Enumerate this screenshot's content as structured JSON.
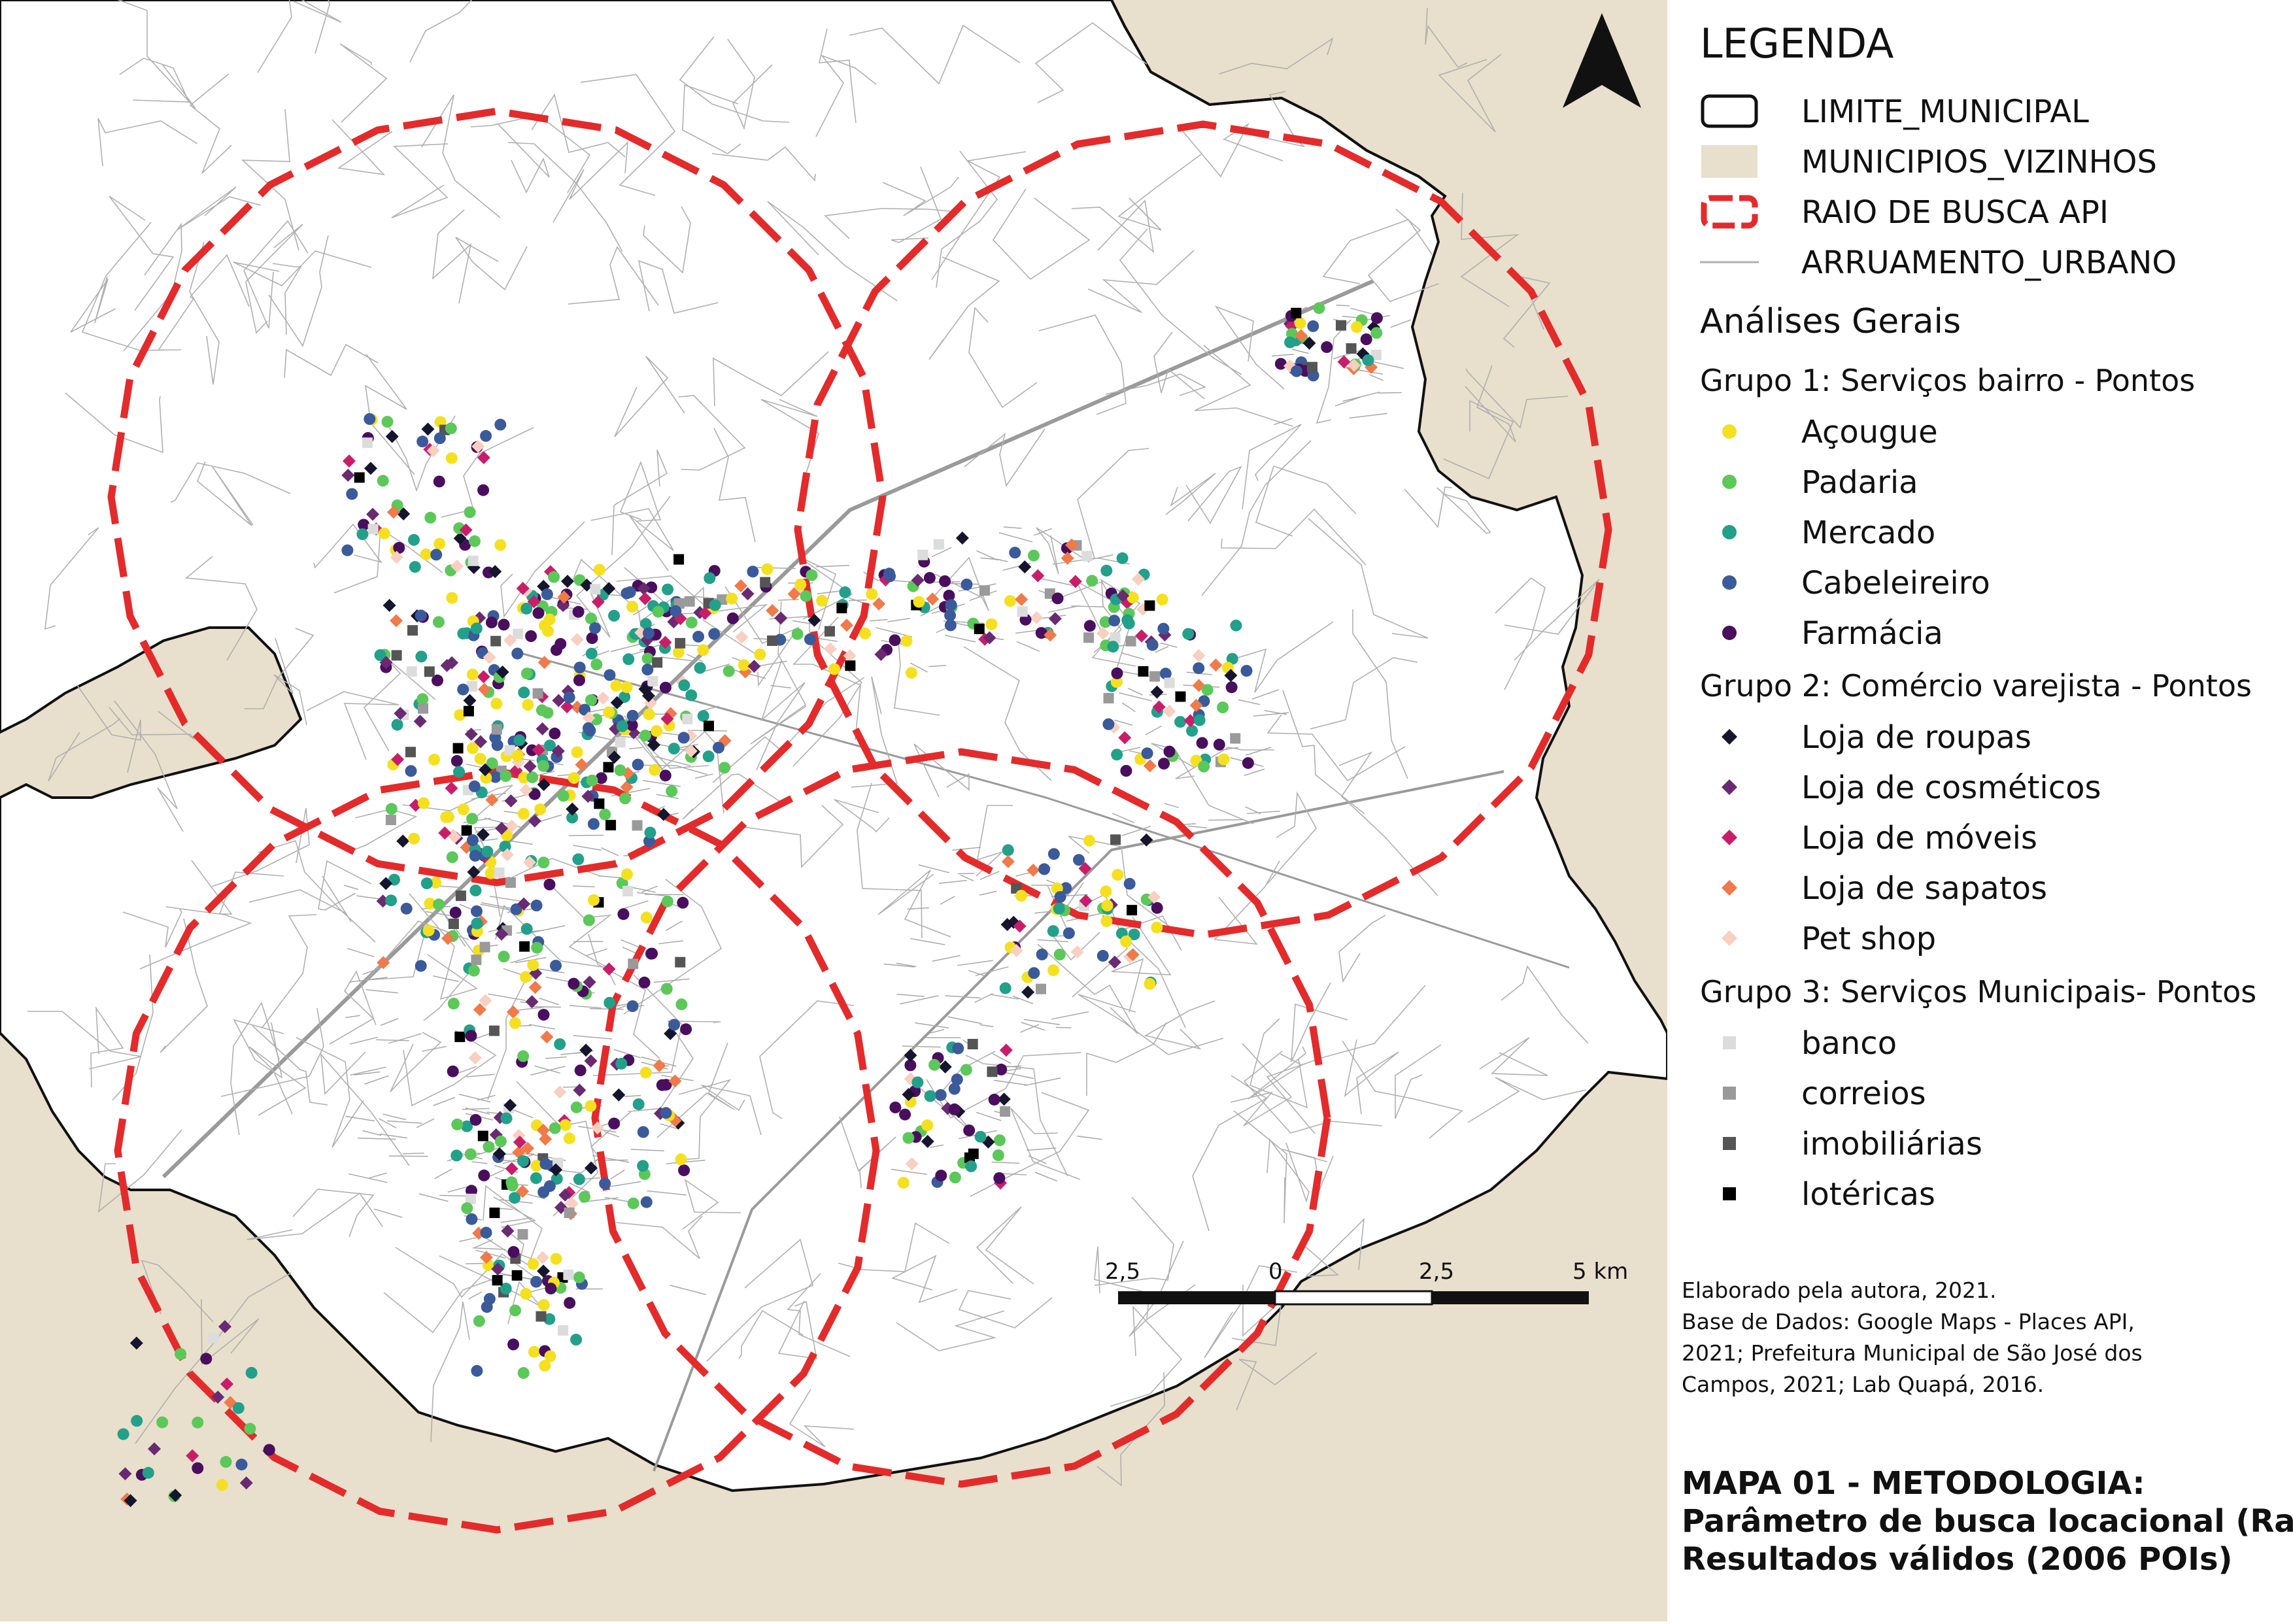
{
  "legend": {
    "title": "LEGENDA",
    "base_layers": [
      {
        "label": "LIMITE_MUNICIPAL",
        "symbol": "boundary",
        "color": "#111111"
      },
      {
        "label": "MUNICIPIOS_VIZINHOS",
        "symbol": "fill",
        "color": "#e8dfcc"
      },
      {
        "label": "RAIO DE BUSCA API",
        "symbol": "dashed-circle",
        "color": "#e32b2b"
      },
      {
        "label": "ARRUAMENTO_URBANO",
        "symbol": "line",
        "color": "#b0b0b0"
      }
    ],
    "analysis_title": "Análises Gerais",
    "groups": [
      {
        "title": "Grupo 1: Serviços bairro - Pontos",
        "items": [
          {
            "label": "Açougue",
            "shape": "circle",
            "color": "#f5e020"
          },
          {
            "label": "Padaria",
            "shape": "circle",
            "color": "#5cc85a"
          },
          {
            "label": "Mercado",
            "shape": "circle",
            "color": "#22a08a"
          },
          {
            "label": "Cabeleireiro",
            "shape": "circle",
            "color": "#3b5a9a"
          },
          {
            "label": "Farmácia",
            "shape": "circle",
            "color": "#4a0e5e"
          }
        ]
      },
      {
        "title": "Grupo 2: Comércio varejista - Pontos",
        "items": [
          {
            "label": "Loja de roupas",
            "shape": "diamond",
            "color": "#15152e"
          },
          {
            "label": "Loja de cosméticos",
            "shape": "diamond",
            "color": "#6a2a72"
          },
          {
            "label": "Loja de móveis",
            "shape": "diamond",
            "color": "#c81e6a"
          },
          {
            "label": "Loja de sapatos",
            "shape": "diamond",
            "color": "#f07a4a"
          },
          {
            "label": "Pet shop",
            "shape": "diamond",
            "color": "#f8cfc0"
          }
        ]
      },
      {
        "title": "Grupo 3: Serviços Municipais- Pontos",
        "items": [
          {
            "label": "banco",
            "shape": "square",
            "color": "#dcdcdc"
          },
          {
            "label": "correios",
            "shape": "square",
            "color": "#9a9a9a"
          },
          {
            "label": "imobiliárias",
            "shape": "square",
            "color": "#555555"
          },
          {
            "label": "lotéricas",
            "shape": "square",
            "color": "#000000"
          }
        ]
      }
    ]
  },
  "credits": [
    "Elaborado pela autora, 2021.",
    "Base de Dados: Google Maps - Places API,",
    "2021; Prefeitura Municipal de São José dos",
    "Campos, 2021; Lab Quapá, 2016."
  ],
  "map_title": [
    "MAPA 01 - METODOLOGIA:",
    "Parâmetro de busca locacional (Raio)",
    "Resultados válidos (2006 POIs)"
  ],
  "scale_bar": {
    "labels": [
      "2,5",
      "0",
      "2,5",
      "5 km"
    ],
    "values": [
      -2.5,
      0,
      2.5,
      5
    ]
  },
  "north_arrow": "north-arrow-icon",
  "colors": {
    "neighbor_fill": "#e8dfcc",
    "boundary": "#111111",
    "search_radius": "#e32b2b",
    "streets": "#b0b0b0"
  }
}
